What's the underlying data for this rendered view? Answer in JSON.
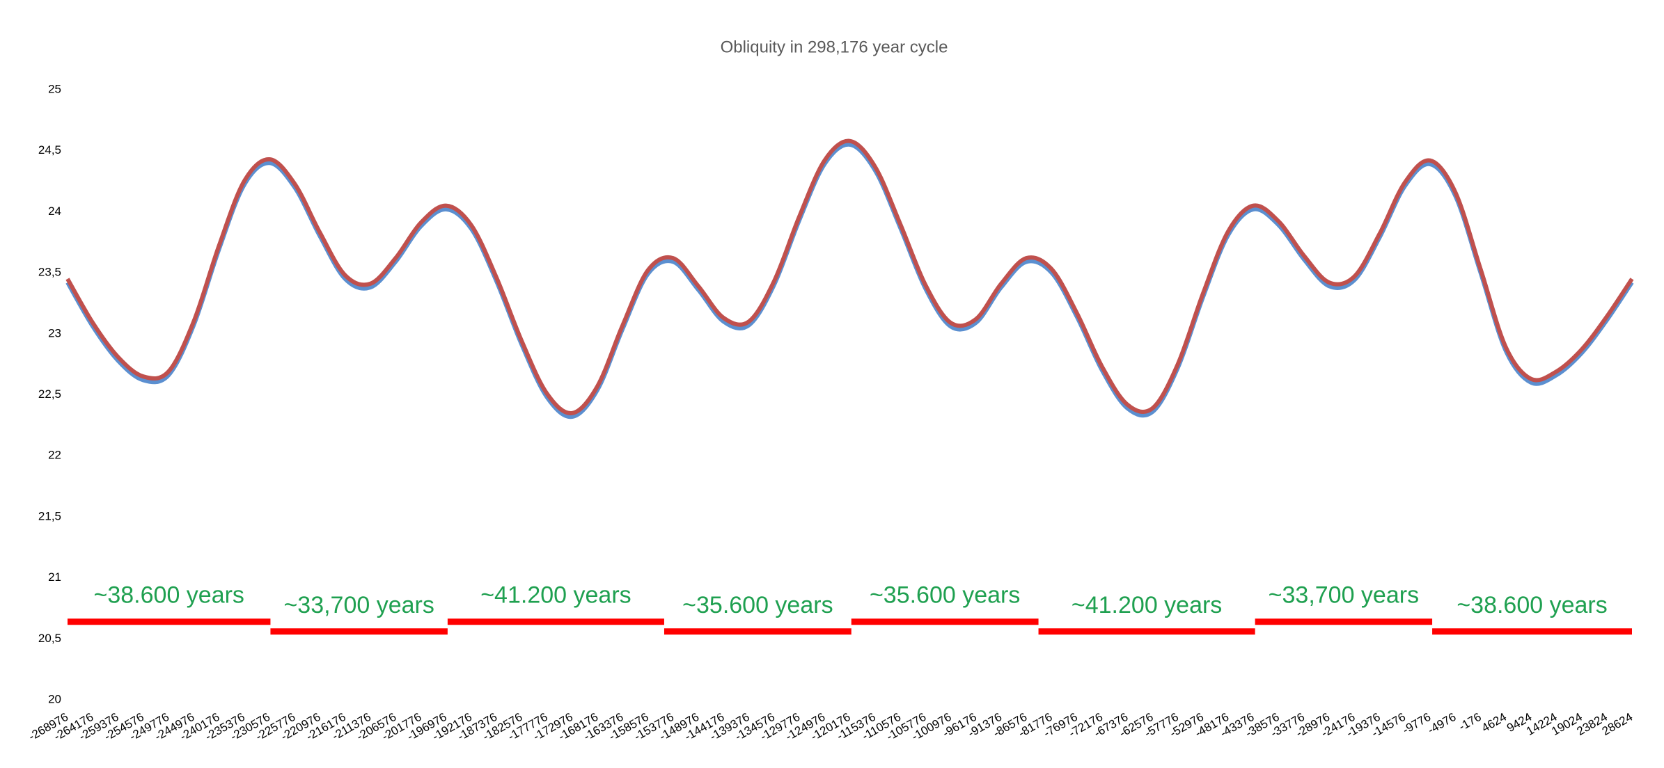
{
  "chart_data": {
    "type": "line",
    "title": "Obliquity in 298,176 year cycle",
    "categories": [
      -268976,
      -264176,
      -259376,
      -254576,
      -249776,
      -244976,
      -240176,
      -235376,
      -230576,
      -225776,
      -220976,
      -216176,
      -211376,
      -206576,
      -201776,
      -196976,
      -192176,
      -187376,
      -182576,
      -177776,
      -172976,
      -168176,
      -163376,
      -158576,
      -153776,
      -148976,
      -144176,
      -139376,
      -134576,
      -129776,
      -124976,
      -120176,
      -115376,
      -110576,
      -105776,
      -100976,
      -96176,
      -91376,
      -86576,
      -81776,
      -76976,
      -72176,
      -67376,
      -62576,
      -57776,
      -52976,
      -48176,
      -43376,
      -38576,
      -33776,
      -28976,
      -24176,
      -19376,
      -14576,
      -9776,
      -4976,
      -176,
      4624,
      9424,
      14224,
      19024,
      23824,
      28624
    ],
    "series": [
      {
        "color": "#5b8fd0",
        "values": [
          23.42,
          23.06,
          22.78,
          22.62,
          22.66,
          23.07,
          23.69,
          24.22,
          24.4,
          24.2,
          23.8,
          23.45,
          23.38,
          23.59,
          23.88,
          24.02,
          23.86,
          23.43,
          22.91,
          22.48,
          22.32,
          22.54,
          23.04,
          23.49,
          23.59,
          23.36,
          23.1,
          23.07,
          23.4,
          23.93,
          24.39,
          24.55,
          24.34,
          23.87,
          23.37,
          23.06,
          23.09,
          23.38,
          23.59,
          23.5,
          23.14,
          22.7,
          22.39,
          22.36,
          22.72,
          23.3,
          23.81,
          24.02,
          23.89,
          23.61,
          23.39,
          23.44,
          23.79,
          24.21,
          24.39,
          24.13,
          23.5,
          22.86,
          22.6,
          22.66,
          22.84,
          23.11,
          23.42
        ]
      },
      {
        "color": "#c0504d",
        "values": [
          23.45,
          23.09,
          22.81,
          22.65,
          22.69,
          23.1,
          23.72,
          24.25,
          24.43,
          24.23,
          23.83,
          23.48,
          23.41,
          23.62,
          23.91,
          24.05,
          23.89,
          23.46,
          22.94,
          22.51,
          22.35,
          22.57,
          23.07,
          23.52,
          23.62,
          23.39,
          23.13,
          23.1,
          23.43,
          23.96,
          24.42,
          24.58,
          24.37,
          23.9,
          23.4,
          23.09,
          23.12,
          23.41,
          23.62,
          23.53,
          23.17,
          22.73,
          22.42,
          22.39,
          22.75,
          23.33,
          23.84,
          24.05,
          23.92,
          23.64,
          23.42,
          23.47,
          23.82,
          24.24,
          24.42,
          24.16,
          23.53,
          22.89,
          22.63,
          22.69,
          22.87,
          23.14,
          23.45
        ]
      }
    ],
    "ylim": [
      20,
      25
    ],
    "yticks": [
      20,
      {
        "value": 20.5,
        "label": "20,5"
      },
      21,
      {
        "value": 21.5,
        "label": "21,5"
      },
      22,
      {
        "value": 22.5,
        "label": "22,5"
      },
      23,
      {
        "value": 23.5,
        "label": "23,5"
      },
      24,
      {
        "value": 24.5,
        "label": "24,5"
      },
      25
    ],
    "grid": false,
    "annotations": [
      {
        "label": "~38.600 years",
        "x": [
          -268976,
          -230376
        ],
        "y": 20.64
      },
      {
        "label": "~33,700 years",
        "x": [
          -230376,
          -196676
        ],
        "y": 20.56
      },
      {
        "label": "~41.200 years",
        "x": [
          -196676,
          -155476
        ],
        "y": 20.64
      },
      {
        "label": "~35.600 years",
        "x": [
          -155476,
          -119876
        ],
        "y": 20.56
      },
      {
        "label": "~35.600 years",
        "x": [
          -119876,
          -84276
        ],
        "y": 20.64
      },
      {
        "label": "~41.200 years",
        "x": [
          -84276,
          -43076
        ],
        "y": 20.56
      },
      {
        "label": "~33,700 years",
        "x": [
          -43076,
          -9376
        ],
        "y": 20.64
      },
      {
        "label": "~38.600 years",
        "x": [
          -9376,
          28624
        ],
        "y": 20.56
      }
    ],
    "annotation_color": "#1fa050",
    "annotation_bar_color": "#ff0000"
  }
}
